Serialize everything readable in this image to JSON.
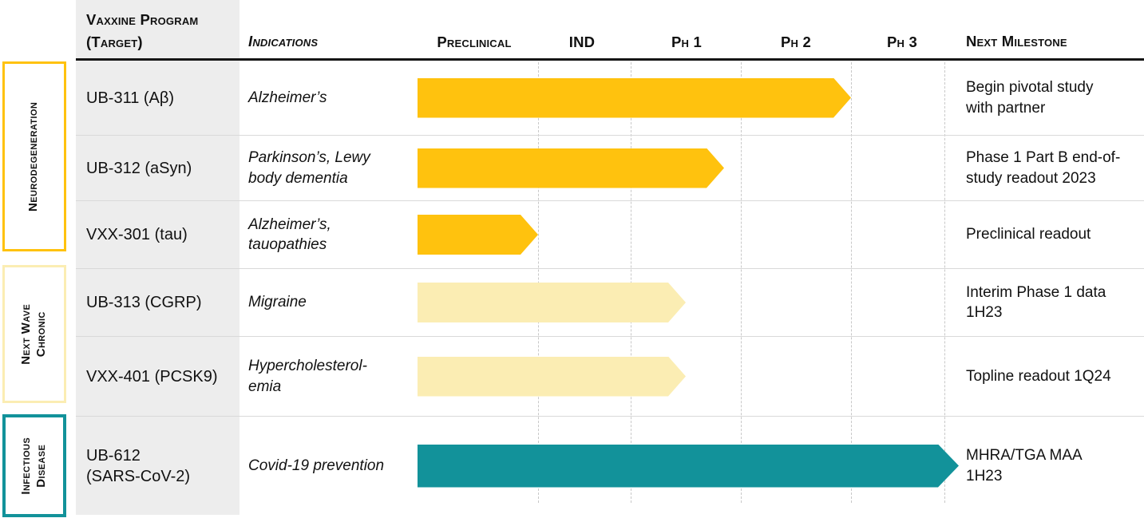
{
  "palette": {
    "gold": "#FFC20E",
    "pale_yellow": "#FBEDB3",
    "teal": "#12929A",
    "program_column_bg": "#EDEDED",
    "gridline": "#C8C8C8",
    "separator": "#D9D9D9"
  },
  "header": {
    "program_line1": "Vaxxine Program",
    "program_line2": "(Target)",
    "indications": "Indications",
    "phases": [
      "Preclinical",
      "IND",
      "Ph 1",
      "Ph 2",
      "Ph 3"
    ],
    "milestone": "Next Milestone"
  },
  "categories": [
    {
      "lines": [
        "Neurodegeneration"
      ],
      "color": "#FFC20E"
    },
    {
      "lines": [
        "Next Wave",
        "Chronic"
      ],
      "color": "#FBEDB3"
    },
    {
      "lines": [
        "Infectious",
        "Disease"
      ],
      "color": "#12929A"
    }
  ],
  "chart_data": {
    "type": "table",
    "phase_axis": [
      "Preclinical",
      "IND",
      "Ph 1",
      "Ph 2",
      "Ph 3"
    ],
    "progress_units": "phases completed: 0 = start of Preclinical, 5 = end of Ph 3",
    "legend_position": "none",
    "grid": "dashed vertical lines at phase boundaries",
    "programs": [
      {
        "name": "UB-311 (Aβ)",
        "indication": "Alzheimer’s",
        "progress": 4.0,
        "color": "#FFC20E",
        "milestone": "Begin pivotal study\nwith partner"
      },
      {
        "name": "UB-312 (aSyn)",
        "indication": "Parkinson’s, Lewy\nbody dementia",
        "progress": 2.85,
        "color": "#FFC20E",
        "milestone": "Phase 1 Part B end-of-\nstudy readout 2023"
      },
      {
        "name": "VXX-301 (tau)",
        "indication": "Alzheimer’s,\ntauopathies",
        "progress": 1.0,
        "color": "#FFC20E",
        "milestone": "Preclinical readout"
      },
      {
        "name": "UB-313 (CGRP)",
        "indication": "Migraine",
        "progress": 2.5,
        "color": "#FBEDB3",
        "milestone": "Interim Phase 1 data\n1H23"
      },
      {
        "name": "VXX-401 (PCSK9)",
        "indication": "Hypercholesterol-\nemia",
        "progress": 2.5,
        "color": "#FBEDB3",
        "milestone": "Topline readout 1Q24"
      },
      {
        "name": "UB-612\n(SARS-CoV-2)",
        "indication": "Covid-19 prevention",
        "progress": 5.15,
        "color": "#12929A",
        "milestone": "MHRA/TGA MAA\n1H23"
      }
    ],
    "groups": [
      {
        "label": "Neurodegeneration",
        "programs": [
          "UB-311 (Aβ)",
          "UB-312 (aSyn)",
          "VXX-301 (tau)"
        ]
      },
      {
        "label": "Next Wave Chronic",
        "programs": [
          "UB-313 (CGRP)",
          "VXX-401 (PCSK9)"
        ]
      },
      {
        "label": "Infectious Disease",
        "programs": [
          "UB-612 (SARS-CoV-2)"
        ]
      }
    ]
  }
}
